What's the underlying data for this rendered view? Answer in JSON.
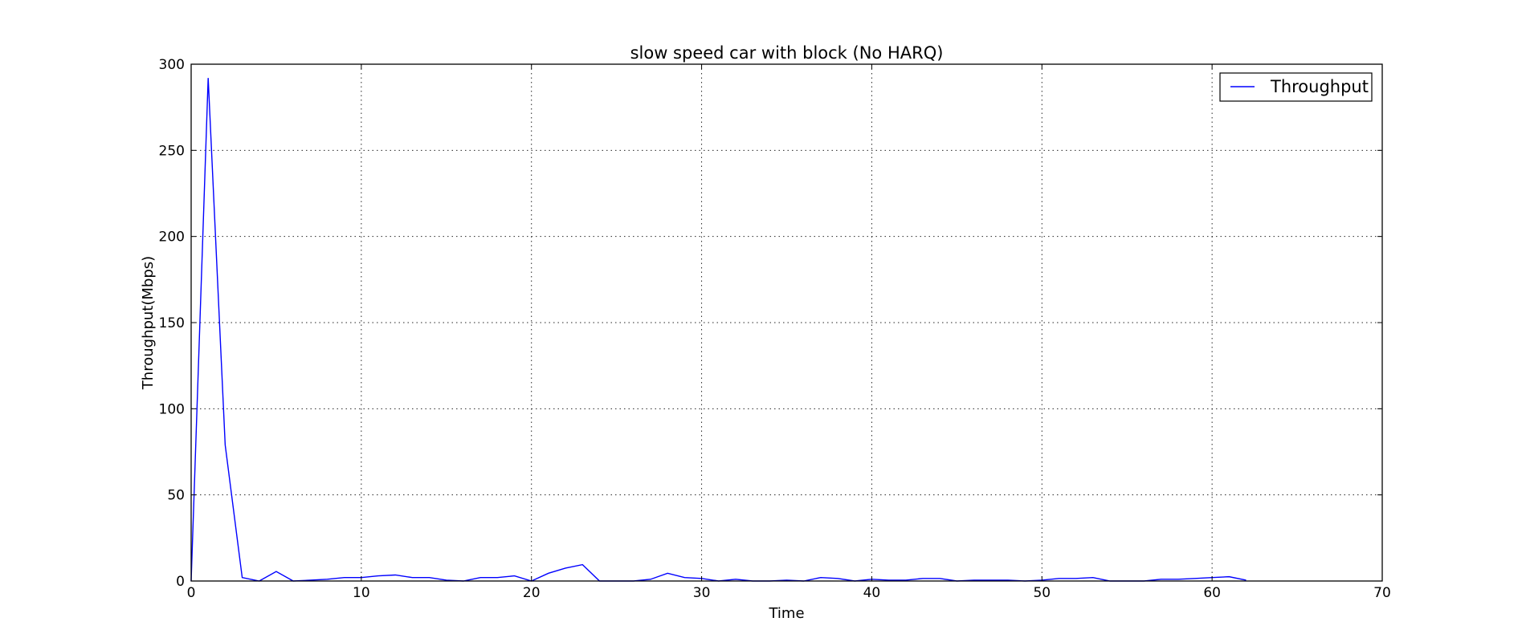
{
  "chart_data": {
    "type": "line",
    "title": "slow speed car with block (No HARQ)",
    "xlabel": "Time",
    "ylabel": "Throughput(Mbps)",
    "xlim": [
      0,
      70
    ],
    "ylim": [
      0,
      300
    ],
    "xticks": [
      0,
      10,
      20,
      30,
      40,
      50,
      60,
      70
    ],
    "yticks": [
      0,
      50,
      100,
      150,
      200,
      250,
      300
    ],
    "grid": true,
    "legend_position": "top-right",
    "series": [
      {
        "name": "Throughput",
        "color": "#0000ff",
        "x": [
          0,
          1,
          2,
          3,
          4,
          5,
          6,
          7,
          8,
          9,
          10,
          11,
          12,
          13,
          14,
          15,
          16,
          17,
          18,
          19,
          20,
          21,
          22,
          23,
          24,
          25,
          26,
          27,
          28,
          29,
          30,
          31,
          32,
          33,
          34,
          35,
          36,
          37,
          38,
          39,
          40,
          41,
          42,
          43,
          44,
          45,
          46,
          47,
          48,
          49,
          50,
          51,
          52,
          53,
          54,
          55,
          56,
          57,
          58,
          59,
          60,
          61,
          62
        ],
        "y": [
          0,
          292,
          79,
          2,
          0,
          5.5,
          0,
          0.5,
          1,
          2,
          2,
          3,
          3.5,
          2,
          2,
          0.5,
          0,
          2,
          2,
          3,
          0,
          4.5,
          7.5,
          9.5,
          0,
          0,
          0,
          1,
          4.5,
          2,
          1.5,
          0,
          1,
          0,
          0,
          0.5,
          0,
          2,
          1.5,
          0,
          1,
          0.5,
          0.5,
          1.5,
          1.5,
          0,
          0.5,
          0.5,
          0.5,
          0,
          0.5,
          1.5,
          1.5,
          2,
          0,
          0,
          0,
          1,
          1,
          1.5,
          2,
          2.5,
          0.5
        ]
      }
    ]
  }
}
